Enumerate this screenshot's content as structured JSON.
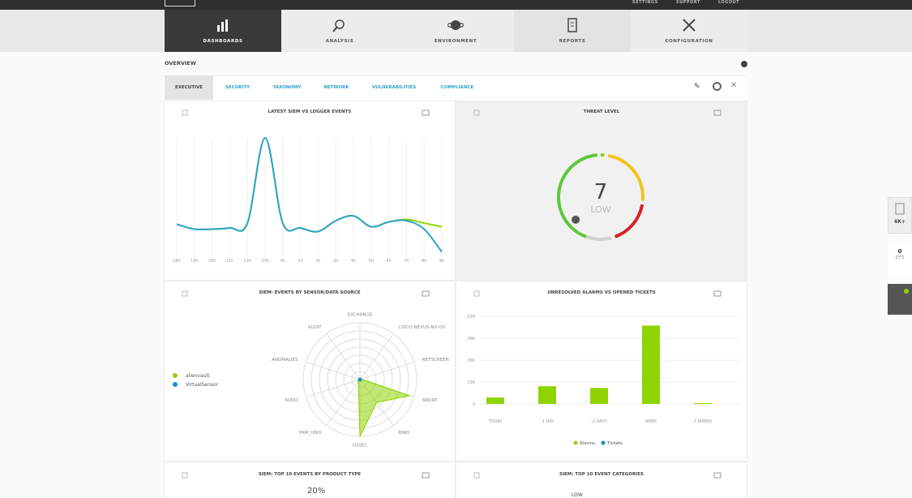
{
  "top_links": [
    "SETTINGS",
    "SUPPORT",
    "LOGOUT"
  ],
  "nav": [
    "DASHBOARDS",
    "ANALYSIS",
    "ENVIRONMENT",
    "REPORTS",
    "CONFIGURATION"
  ],
  "page_title": "OVERVIEW",
  "subtabs": [
    "EXECUTIVE",
    "SECURITY",
    "TAXONOMY",
    "NETWORK",
    "VULNERABILITIES",
    "COMPLIANCE"
  ],
  "widgets": {
    "events": "6K+",
    "eps_value": "0",
    "eps_label": "EPS"
  },
  "panels": [
    {
      "title": "LATEST SIEM VS LOGGER EVENTS",
      "chart": {
        "type": "line",
        "categories": [
          "18h",
          "19h",
          "20h",
          "21h",
          "22h",
          "23h",
          "0h",
          "1h",
          "2h",
          "3h",
          "4h",
          "5h",
          "6h",
          "7h",
          "8h",
          "9h"
        ],
        "ylim": [
          0,
          100
        ],
        "series": [
          {
            "color": "#8fd400",
            "values": [
              28,
              24,
              24,
              25,
              29,
              100,
              29,
              25,
              22,
              31,
              35,
              26,
              30,
              32,
              29,
              26
            ]
          },
          {
            "color": "#2aa3c9",
            "values": [
              28,
              24,
              24,
              25,
              29,
              100,
              29,
              25,
              22,
              31,
              35,
              26,
              30,
              31,
              24,
              5
            ]
          }
        ]
      }
    },
    {
      "title": "THREAT LEVEL",
      "chart": {
        "type": "gauge",
        "value": 7,
        "label": "LOW"
      }
    },
    {
      "title": "SIEM: EVENTS BY SENSOR/DATA SOURCE",
      "chart": {
        "type": "radar",
        "categories": [
          "EXCHANGE",
          "CISCO-NEXUS-NX-OS",
          "NETSCREEN",
          "SNORT",
          "BIND",
          "OSSEC",
          "PAM_UNIX",
          "SUDO",
          "ANOMALIES",
          "AUDIT"
        ],
        "ylim": [
          0,
          100
        ],
        "series": [
          {
            "name": "alienvault",
            "color": "#8fd400",
            "values": [
              2,
              2,
              3,
              92,
              50,
              100,
              5,
              3,
              2,
              2
            ]
          },
          {
            "name": "VirtualSensor",
            "color": "#1a8fc9",
            "values": [
              0,
              0,
              0,
              0,
              0,
              0,
              0,
              0,
              0,
              0
            ]
          }
        ]
      }
    },
    {
      "title": "UNRESOLVED ALARMS VS OPENED TICKETS",
      "chart": {
        "type": "bar",
        "categories": [
          "TODAY",
          "-1 DAY",
          "-2 DAYS",
          "WEEK",
          "2 WEEKS"
        ],
        "ylim": [
          0,
          52
        ],
        "yticks": [
          0,
          {
            "value": 13,
            "label": "13K"
          },
          {
            "value": 26,
            "label": "26K"
          },
          {
            "value": 39,
            "label": "39K"
          },
          {
            "value": 52,
            "label": "52K"
          }
        ],
        "series": [
          {
            "name": "Alarms",
            "color": "#8fd400",
            "values": [
              3.8,
              10.5,
              9.5,
              46.5,
              0.5
            ]
          },
          {
            "name": "Tickets",
            "color": "#1a8fc9",
            "values": [
              0,
              0,
              0,
              0,
              0
            ]
          }
        ]
      }
    },
    {
      "title": "SIEM: TOP 10 EVENTS BY PRODUCT TYPE",
      "visible_label": "20%"
    },
    {
      "title": "SIEM: TOP 10 EVENT CATEGORIES",
      "visible_label": "LOW"
    }
  ]
}
